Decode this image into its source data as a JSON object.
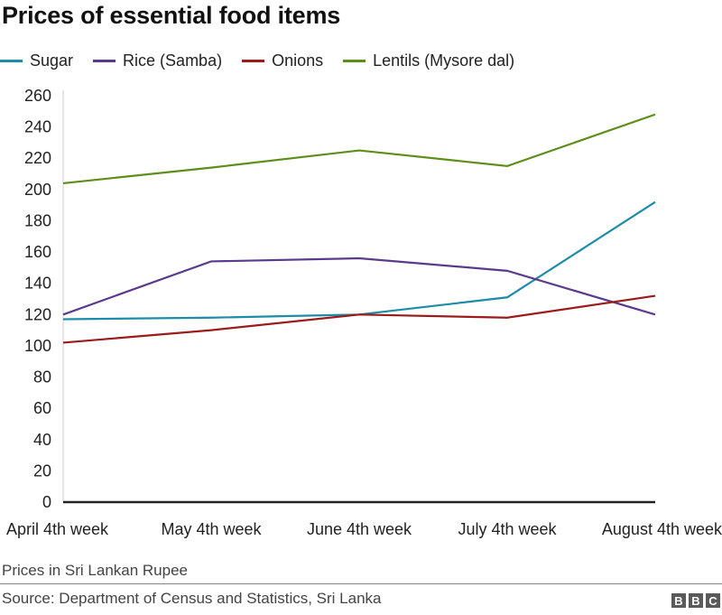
{
  "header": {
    "title": "Prices of essential food items"
  },
  "legend": {
    "items": [
      {
        "label": "Sugar",
        "color": "#1d8ca8"
      },
      {
        "label": "Rice (Samba)",
        "color": "#5b3a8e"
      },
      {
        "label": "Onions",
        "color": "#9b1b1b"
      },
      {
        "label": "Lentils (Mysore dal)",
        "color": "#5e8e1a"
      }
    ]
  },
  "chart_data": {
    "type": "line",
    "title": "Prices of essential food items",
    "xlabel": "",
    "ylabel": "Prices in Sri Lankan Rupee",
    "categories": [
      "April 4th week",
      "May 4th week",
      "June 4th week",
      "July 4th week",
      "August 4th week"
    ],
    "ylim": [
      0,
      260
    ],
    "yticks": [
      0,
      20,
      40,
      60,
      80,
      100,
      120,
      140,
      160,
      180,
      200,
      220,
      240,
      260
    ],
    "grid": false,
    "legend_position": "top-left",
    "series": [
      {
        "name": "Sugar",
        "color": "#1d8ca8",
        "values": [
          117,
          118,
          120,
          131,
          192
        ]
      },
      {
        "name": "Rice (Samba)",
        "color": "#5b3a8e",
        "values": [
          120,
          154,
          156,
          148,
          120
        ]
      },
      {
        "name": "Onions",
        "color": "#9b1b1b",
        "values": [
          102,
          110,
          120,
          118,
          132
        ]
      },
      {
        "name": "Lentils (Mysore dal)",
        "color": "#5e8e1a",
        "values": [
          204,
          214,
          225,
          215,
          248
        ]
      }
    ]
  },
  "footer": {
    "note": "Prices in Sri Lankan Rupee",
    "source": "Source: Department of Census and Statistics, Sri Lanka",
    "logo": [
      "B",
      "B",
      "C"
    ]
  }
}
